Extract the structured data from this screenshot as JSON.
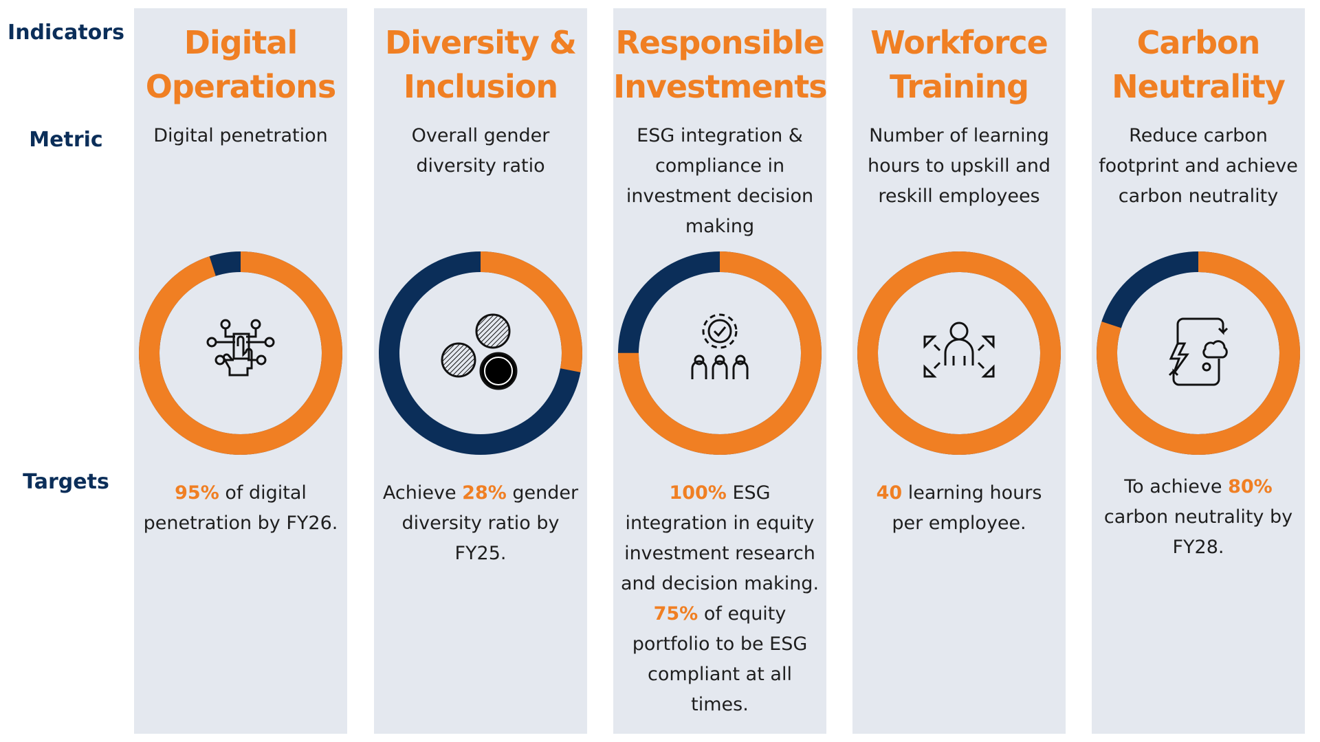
{
  "row_labels": {
    "indicators": "Indicators",
    "metric": "Metric",
    "targets": "Targets"
  },
  "colors": {
    "accent": "#f07f23",
    "navy": "#0b2e59",
    "panel": "#e4e8ef"
  },
  "columns": [
    {
      "title": "Digital Operations",
      "metric": "Digital penetration",
      "progress_percent": 95,
      "icon": "digital-touch-icon",
      "target": [
        {
          "text": "95%",
          "hl": true
        },
        {
          "text": " of digital penetration by FY26.",
          "hl": false
        }
      ]
    },
    {
      "title": "Diversity & Inclusion",
      "metric": "Overall gender diversity ratio",
      "progress_percent": 28,
      "icon": "diversity-circles-icon",
      "target": [
        {
          "text": "Achieve ",
          "hl": false
        },
        {
          "text": "28%",
          "hl": true
        },
        {
          "text": " gender diversity ratio by FY25.",
          "hl": false
        }
      ]
    },
    {
      "title": "Responsible Investments",
      "metric": "ESG integration & compliance in investment decision making",
      "progress_percent": 75,
      "icon": "team-gear-check-icon",
      "target": [
        {
          "text": "100%",
          "hl": true
        },
        {
          "text": " ESG integration in equity investment research and decision making. ",
          "hl": false
        },
        {
          "text": "75%",
          "hl": true
        },
        {
          "text": " of equity portfolio to be ESG compliant at all times.",
          "hl": false
        }
      ]
    },
    {
      "title": "Workforce Training",
      "metric": "Number of learning hours to upskill and reskill employees",
      "progress_percent": 100,
      "icon": "person-expand-icon",
      "target": [
        {
          "text": "40",
          "hl": true
        },
        {
          "text": " learning hours per employee.",
          "hl": false
        }
      ]
    },
    {
      "title": "Carbon Neutrality",
      "metric": "Reduce carbon footprint and achieve carbon neutrality",
      "progress_percent": 80,
      "icon": "carbon-cycle-icon",
      "target": [
        {
          "text": "To achieve ",
          "hl": false
        },
        {
          "text": "80%",
          "hl": true
        },
        {
          "text": " carbon neutrality by FY28.",
          "hl": false
        }
      ]
    }
  ]
}
